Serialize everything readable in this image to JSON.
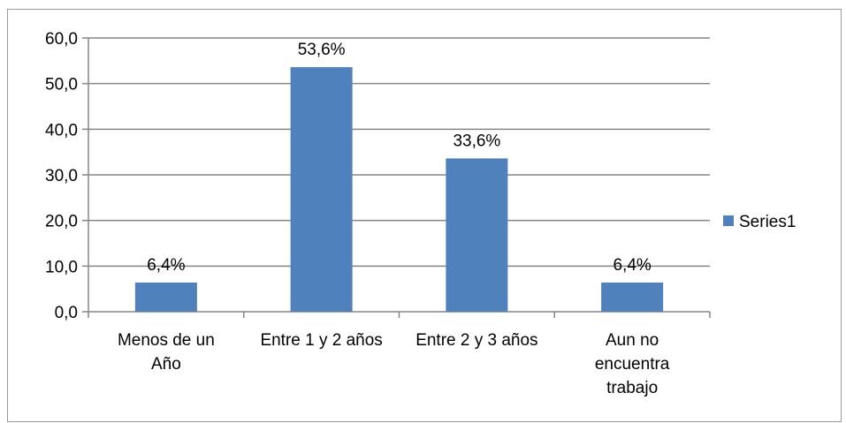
{
  "chart_data": {
    "type": "bar",
    "categories": [
      [
        "Menos de un",
        "Año"
      ],
      [
        "Entre 1 y 2 años"
      ],
      [
        "Entre 2 y 3 años"
      ],
      [
        "Aun no",
        "encuentra",
        "trabajo"
      ]
    ],
    "series": [
      {
        "name": "Series1",
        "values": [
          6.4,
          53.6,
          33.6,
          6.4
        ]
      }
    ],
    "data_labels": [
      "6,4%",
      "53,6%",
      "33,6%",
      "6,4%"
    ],
    "y_ticks": [
      "0,0",
      "10,0",
      "20,0",
      "30,0",
      "40,0",
      "50,0",
      "60,0"
    ],
    "ylim": [
      0,
      60
    ],
    "grid": true,
    "legend_position": "right",
    "colors": {
      "bar": "#4f81bd",
      "grid": "#868686",
      "axis": "#868686"
    }
  }
}
